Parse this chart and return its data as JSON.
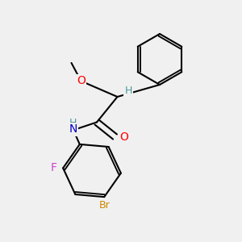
{
  "background_color": "#f0f0f0",
  "bond_color": "#000000",
  "atom_colors": {
    "O": "#ff0000",
    "N": "#0000cd",
    "F": "#cc44cc",
    "Br": "#cc8800",
    "H": "#4a9a9a"
  },
  "fig_width": 3.0,
  "fig_height": 3.0,
  "dpi": 100
}
